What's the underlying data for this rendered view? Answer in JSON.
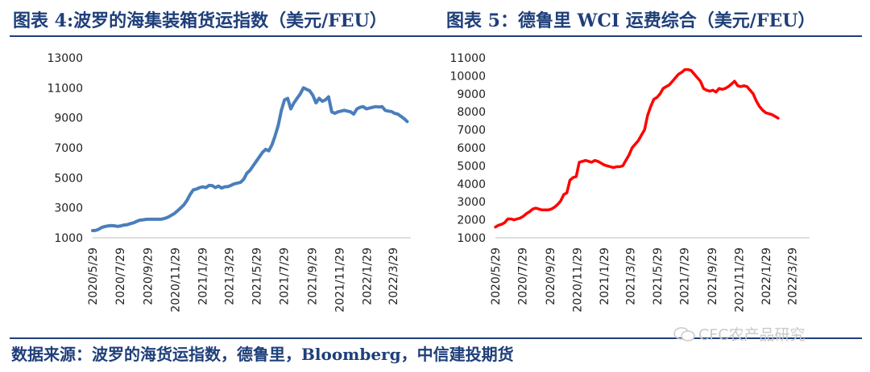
{
  "header": {
    "left_title": "图表 4:波罗的海集装箱货运指数（美元/FEU）",
    "right_title": "图表 5：德鲁里 WCI 运费综合（美元/FEU）"
  },
  "footer": {
    "source": "数据来源：波罗的海货运指数，德鲁里，Bloomberg，中信建投期货",
    "watermark": "CFC农产品研究"
  },
  "colors": {
    "accent": "#1f3f7a",
    "series_left": "#4a7ebb",
    "series_right": "#ff0000"
  },
  "chart_data": [
    {
      "type": "line",
      "title": "图表 4:波罗的海集装箱货运指数（美元/FEU）",
      "ylim": [
        1000,
        13000
      ],
      "yticks": [
        1000,
        3000,
        5000,
        7000,
        9000,
        11000,
        13000
      ],
      "xlim": [
        "2020-05-29",
        "2022-05-07"
      ],
      "xticks": [
        "2020/5/29",
        "2020/7/29",
        "2020/9/29",
        "2020/11/29",
        "2021/1/29",
        "2021/3/29",
        "2021/5/29",
        "2021/7/29",
        "2021/9/29",
        "2021/11/29",
        "2022/1/29",
        "2022/3/29"
      ],
      "grid": false,
      "legend": "none",
      "series": [
        {
          "color": "#4a7ebb",
          "points": [
            [
              "2020-05-29",
              1480
            ],
            [
              "2020-06-05",
              1500
            ],
            [
              "2020-06-12",
              1580
            ],
            [
              "2020-06-19",
              1700
            ],
            [
              "2020-06-26",
              1760
            ],
            [
              "2020-07-03",
              1800
            ],
            [
              "2020-07-10",
              1820
            ],
            [
              "2020-07-17",
              1800
            ],
            [
              "2020-07-24",
              1760
            ],
            [
              "2020-07-31",
              1800
            ],
            [
              "2020-08-07",
              1850
            ],
            [
              "2020-08-14",
              1880
            ],
            [
              "2020-08-21",
              1950
            ],
            [
              "2020-08-28",
              2000
            ],
            [
              "2020-09-04",
              2100
            ],
            [
              "2020-09-11",
              2180
            ],
            [
              "2020-09-18",
              2200
            ],
            [
              "2020-09-25",
              2230
            ],
            [
              "2020-10-02",
              2240
            ],
            [
              "2020-10-09",
              2240
            ],
            [
              "2020-10-16",
              2240
            ],
            [
              "2020-10-23",
              2240
            ],
            [
              "2020-10-30",
              2250
            ],
            [
              "2020-11-06",
              2300
            ],
            [
              "2020-11-13",
              2380
            ],
            [
              "2020-11-20",
              2500
            ],
            [
              "2020-11-27",
              2620
            ],
            [
              "2020-12-04",
              2800
            ],
            [
              "2020-12-11",
              3000
            ],
            [
              "2020-12-18",
              3200
            ],
            [
              "2020-12-25",
              3500
            ],
            [
              "2021-01-01",
              3900
            ],
            [
              "2021-01-08",
              4200
            ],
            [
              "2021-01-15",
              4250
            ],
            [
              "2021-01-22",
              4350
            ],
            [
              "2021-01-29",
              4400
            ],
            [
              "2021-02-05",
              4350
            ],
            [
              "2021-02-12",
              4500
            ],
            [
              "2021-02-19",
              4480
            ],
            [
              "2021-02-26",
              4350
            ],
            [
              "2021-03-05",
              4450
            ],
            [
              "2021-03-12",
              4320
            ],
            [
              "2021-03-19",
              4400
            ],
            [
              "2021-03-26",
              4420
            ],
            [
              "2021-04-02",
              4500
            ],
            [
              "2021-04-09",
              4600
            ],
            [
              "2021-04-16",
              4650
            ],
            [
              "2021-04-23",
              4700
            ],
            [
              "2021-04-30",
              4900
            ],
            [
              "2021-05-07",
              5300
            ],
            [
              "2021-05-14",
              5500
            ],
            [
              "2021-05-21",
              5800
            ],
            [
              "2021-05-28",
              6100
            ],
            [
              "2021-06-04",
              6400
            ],
            [
              "2021-06-11",
              6700
            ],
            [
              "2021-06-18",
              6900
            ],
            [
              "2021-06-25",
              6800
            ],
            [
              "2021-07-02",
              7200
            ],
            [
              "2021-07-09",
              7800
            ],
            [
              "2021-07-16",
              8500
            ],
            [
              "2021-07-23",
              9500
            ],
            [
              "2021-07-30",
              10200
            ],
            [
              "2021-08-06",
              10300
            ],
            [
              "2021-08-13",
              9600
            ],
            [
              "2021-08-20",
              10000
            ],
            [
              "2021-08-27",
              10300
            ],
            [
              "2021-09-03",
              10600
            ],
            [
              "2021-09-10",
              11000
            ],
            [
              "2021-09-17",
              10900
            ],
            [
              "2021-09-24",
              10800
            ],
            [
              "2021-10-01",
              10500
            ],
            [
              "2021-10-08",
              10000
            ],
            [
              "2021-10-15",
              10300
            ],
            [
              "2021-10-22",
              10100
            ],
            [
              "2021-10-29",
              10200
            ],
            [
              "2021-11-05",
              10400
            ],
            [
              "2021-11-12",
              9400
            ],
            [
              "2021-11-19",
              9300
            ],
            [
              "2021-11-26",
              9400
            ],
            [
              "2021-12-03",
              9450
            ],
            [
              "2021-12-10",
              9500
            ],
            [
              "2021-12-17",
              9450
            ],
            [
              "2021-12-24",
              9400
            ],
            [
              "2021-12-31",
              9250
            ],
            [
              "2022-01-07",
              9600
            ],
            [
              "2022-01-14",
              9700
            ],
            [
              "2022-01-21",
              9750
            ],
            [
              "2022-01-28",
              9600
            ],
            [
              "2022-02-04",
              9650
            ],
            [
              "2022-02-11",
              9700
            ],
            [
              "2022-02-18",
              9750
            ],
            [
              "2022-02-25",
              9720
            ],
            [
              "2022-03-04",
              9750
            ],
            [
              "2022-03-11",
              9500
            ],
            [
              "2022-03-18",
              9450
            ],
            [
              "2022-03-25",
              9420
            ],
            [
              "2022-04-01",
              9300
            ],
            [
              "2022-04-08",
              9250
            ],
            [
              "2022-04-15",
              9100
            ],
            [
              "2022-04-22",
              8950
            ],
            [
              "2022-04-29",
              8750
            ]
          ]
        }
      ]
    },
    {
      "type": "line",
      "title": "图表 5：德鲁里 WCI 运费综合（美元/FEU）",
      "ylim": [
        1000,
        11000
      ],
      "yticks": [
        1000,
        2000,
        3000,
        4000,
        5000,
        6000,
        7000,
        8000,
        9000,
        10000,
        11000
      ],
      "xlim": [
        "2020-05-29",
        "2022-05-07"
      ],
      "xticks": [
        "2020/5/29",
        "2020/7/29",
        "2020/9/29",
        "2020/11/29",
        "2021/1/29",
        "2021/3/29",
        "2021/5/29",
        "2021/7/29",
        "2021/9/29",
        "2021/11/29",
        "2022/1/29",
        "2022/3/29"
      ],
      "grid": false,
      "legend": "none",
      "series": [
        {
          "color": "#ff0000",
          "points": [
            [
              "2020-05-29",
              1600
            ],
            [
              "2020-06-05",
              1700
            ],
            [
              "2020-06-12",
              1750
            ],
            [
              "2020-06-19",
              1850
            ],
            [
              "2020-06-26",
              2050
            ],
            [
              "2020-07-03",
              2050
            ],
            [
              "2020-07-10",
              2000
            ],
            [
              "2020-07-17",
              2050
            ],
            [
              "2020-07-24",
              2100
            ],
            [
              "2020-07-31",
              2200
            ],
            [
              "2020-08-07",
              2350
            ],
            [
              "2020-08-14",
              2450
            ],
            [
              "2020-08-21",
              2600
            ],
            [
              "2020-08-28",
              2650
            ],
            [
              "2020-09-04",
              2600
            ],
            [
              "2020-09-11",
              2550
            ],
            [
              "2020-09-18",
              2550
            ],
            [
              "2020-09-25",
              2550
            ],
            [
              "2020-10-02",
              2600
            ],
            [
              "2020-10-09",
              2700
            ],
            [
              "2020-10-16",
              2850
            ],
            [
              "2020-10-23",
              3050
            ],
            [
              "2020-10-30",
              3400
            ],
            [
              "2020-11-06",
              3500
            ],
            [
              "2020-11-13",
              4200
            ],
            [
              "2020-11-20",
              4350
            ],
            [
              "2020-11-27",
              4400
            ],
            [
              "2020-12-04",
              5200
            ],
            [
              "2020-12-11",
              5250
            ],
            [
              "2020-12-18",
              5300
            ],
            [
              "2020-12-25",
              5250
            ],
            [
              "2021-01-01",
              5200
            ],
            [
              "2021-01-08",
              5300
            ],
            [
              "2021-01-15",
              5250
            ],
            [
              "2021-01-22",
              5150
            ],
            [
              "2021-01-29",
              5050
            ],
            [
              "2021-02-05",
              5000
            ],
            [
              "2021-02-12",
              4950
            ],
            [
              "2021-02-19",
              4900
            ],
            [
              "2021-02-26",
              4950
            ],
            [
              "2021-03-05",
              4950
            ],
            [
              "2021-03-12",
              5000
            ],
            [
              "2021-03-19",
              5300
            ],
            [
              "2021-03-26",
              5600
            ],
            [
              "2021-04-02",
              6000
            ],
            [
              "2021-04-09",
              6200
            ],
            [
              "2021-04-16",
              6400
            ],
            [
              "2021-04-23",
              6700
            ],
            [
              "2021-04-30",
              7000
            ],
            [
              "2021-05-07",
              7800
            ],
            [
              "2021-05-14",
              8300
            ],
            [
              "2021-05-21",
              8700
            ],
            [
              "2021-05-28",
              8800
            ],
            [
              "2021-06-04",
              9000
            ],
            [
              "2021-06-11",
              9300
            ],
            [
              "2021-06-18",
              9400
            ],
            [
              "2021-06-25",
              9500
            ],
            [
              "2021-07-02",
              9700
            ],
            [
              "2021-07-09",
              9900
            ],
            [
              "2021-07-16",
              10100
            ],
            [
              "2021-07-23",
              10200
            ],
            [
              "2021-07-30",
              10350
            ],
            [
              "2021-08-06",
              10350
            ],
            [
              "2021-08-13",
              10300
            ],
            [
              "2021-08-20",
              10100
            ],
            [
              "2021-08-27",
              9900
            ],
            [
              "2021-09-03",
              9700
            ],
            [
              "2021-09-10",
              9300
            ],
            [
              "2021-09-17",
              9200
            ],
            [
              "2021-09-24",
              9150
            ],
            [
              "2021-10-01",
              9200
            ],
            [
              "2021-10-08",
              9100
            ],
            [
              "2021-10-15",
              9300
            ],
            [
              "2021-10-22",
              9250
            ],
            [
              "2021-10-29",
              9300
            ],
            [
              "2021-11-05",
              9400
            ],
            [
              "2021-11-12",
              9550
            ],
            [
              "2021-11-19",
              9700
            ],
            [
              "2021-11-26",
              9450
            ],
            [
              "2021-12-03",
              9400
            ],
            [
              "2021-12-10",
              9450
            ],
            [
              "2021-12-17",
              9400
            ],
            [
              "2021-12-24",
              9200
            ],
            [
              "2021-12-31",
              9000
            ],
            [
              "2022-01-07",
              8600
            ],
            [
              "2022-01-14",
              8300
            ],
            [
              "2022-01-21",
              8100
            ],
            [
              "2022-01-28",
              7950
            ],
            [
              "2022-02-04",
              7900
            ],
            [
              "2022-02-11",
              7850
            ],
            [
              "2022-02-18",
              7750
            ],
            [
              "2022-02-25",
              7650
            ]
          ]
        }
      ]
    }
  ]
}
